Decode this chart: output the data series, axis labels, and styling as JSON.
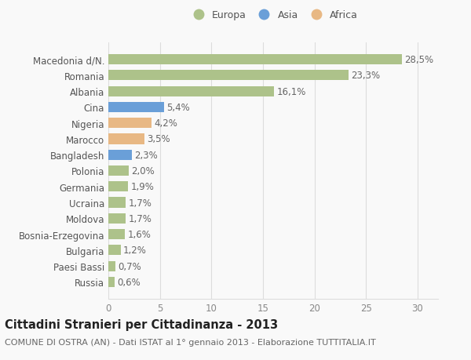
{
  "categories": [
    "Macedonia d/N.",
    "Romania",
    "Albania",
    "Cina",
    "Nigeria",
    "Marocco",
    "Bangladesh",
    "Polonia",
    "Germania",
    "Ucraina",
    "Moldova",
    "Bosnia-Erzegovina",
    "Bulgaria",
    "Paesi Bassi",
    "Russia"
  ],
  "values": [
    28.5,
    23.3,
    16.1,
    5.4,
    4.2,
    3.5,
    2.3,
    2.0,
    1.9,
    1.7,
    1.7,
    1.6,
    1.2,
    0.7,
    0.6
  ],
  "labels": [
    "28,5%",
    "23,3%",
    "16,1%",
    "5,4%",
    "4,2%",
    "3,5%",
    "2,3%",
    "2,0%",
    "1,9%",
    "1,7%",
    "1,7%",
    "1,6%",
    "1,2%",
    "0,7%",
    "0,6%"
  ],
  "colors": [
    "#adc28a",
    "#adc28a",
    "#adc28a",
    "#6a9fd8",
    "#e8b884",
    "#e8b884",
    "#6a9fd8",
    "#adc28a",
    "#adc28a",
    "#adc28a",
    "#adc28a",
    "#adc28a",
    "#adc28a",
    "#adc28a",
    "#adc28a"
  ],
  "legend_labels": [
    "Europa",
    "Asia",
    "Africa"
  ],
  "legend_colors": [
    "#adc28a",
    "#6a9fd8",
    "#e8b884"
  ],
  "title": "Cittadini Stranieri per Cittadinanza - 2013",
  "subtitle": "COMUNE DI OSTRA (AN) - Dati ISTAT al 1° gennaio 2013 - Elaborazione TUTTITALIA.IT",
  "xlim": [
    0,
    32
  ],
  "xticks": [
    0,
    5,
    10,
    15,
    20,
    25,
    30
  ],
  "background_color": "#f9f9f9",
  "grid_color": "#dddddd",
  "bar_height": 0.65,
  "title_fontsize": 10.5,
  "subtitle_fontsize": 8,
  "tick_fontsize": 8.5,
  "label_fontsize": 8.5
}
